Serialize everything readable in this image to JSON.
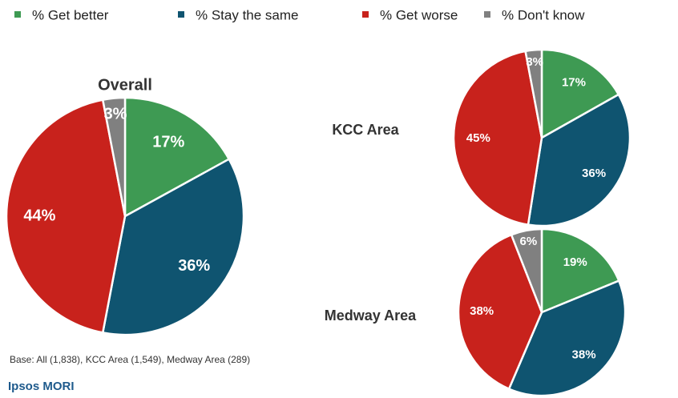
{
  "legend": [
    {
      "name": "% Get better",
      "color": "#3e9a53"
    },
    {
      "name": "% Stay the same",
      "color": "#0f5470"
    },
    {
      "name": "% Get worse",
      "color": "#c8221c"
    },
    {
      "name": "% Don't know",
      "color": "#808080"
    }
  ],
  "chart_data": [
    {
      "type": "pie",
      "title": "Overall",
      "values": [
        17,
        36,
        44,
        3
      ],
      "value_labels": [
        "17%",
        "36%",
        "44%",
        "3%"
      ]
    },
    {
      "type": "pie",
      "title": "KCC Area",
      "values": [
        17,
        36,
        45,
        3
      ],
      "value_labels": [
        "17%",
        "36%",
        "45%",
        "3%"
      ]
    },
    {
      "type": "pie",
      "title": "Medway Area",
      "values": [
        19,
        38,
        38,
        6
      ],
      "value_labels": [
        "19%",
        "38%",
        "38%",
        "6%"
      ]
    }
  ],
  "base_note": "Base: All (1,838), KCC Area (1,549), Medway Area (289)",
  "logo": "Ipsos MORI"
}
